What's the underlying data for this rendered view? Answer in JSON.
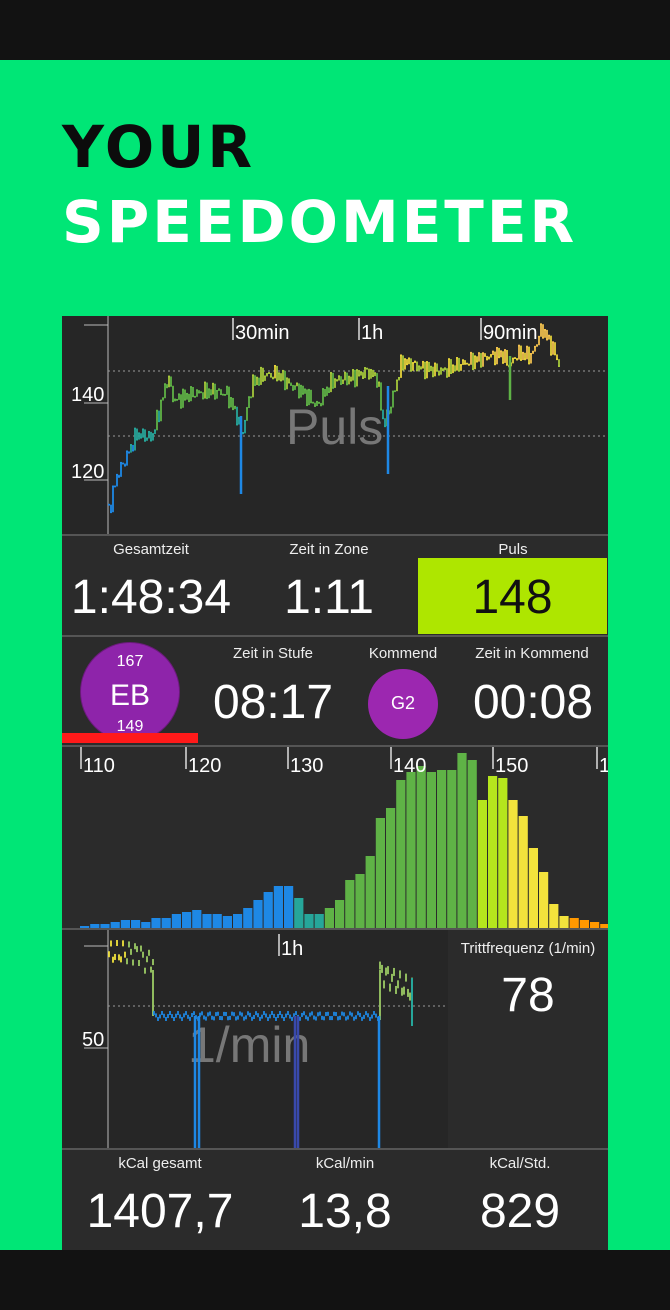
{
  "headline": {
    "line1": "YOUR",
    "line2": "SPEEDOMETER"
  },
  "pulse_chart": {
    "watermark": "Puls",
    "time_marks": [
      "30min",
      "1h",
      "90min"
    ],
    "y_ticks": [
      "140",
      "120"
    ]
  },
  "stats1": {
    "total_time_label": "Gesamtzeit",
    "total_time_value": "1:48:34",
    "zone_time_label": "Zeit in Zone",
    "zone_time_value": "1:11",
    "pulse_label": "Puls",
    "pulse_value": "148",
    "pulse_color": "#aee600"
  },
  "stage": {
    "badge_top": "167",
    "badge_label": "EB",
    "badge_bottom": "149",
    "stage_time_label": "Zeit in Stufe",
    "stage_time_value": "08:17",
    "next_label": "Kommend",
    "next_badge": "G2",
    "next_time_label": "Zeit in Kommend",
    "next_time_value": "00:08",
    "badge_color": "#8e24aa"
  },
  "histogram": {
    "x_ticks": [
      "110",
      "120",
      "130",
      "140",
      "150",
      "1"
    ]
  },
  "cadence": {
    "watermark": "1/min",
    "time_mark": "1h",
    "y_tick": "50",
    "label": "Trittfrequenz (1/min)",
    "value": "78"
  },
  "kcal": {
    "total_label": "kCal gesamt",
    "total_value": "1407,7",
    "per_min_label": "kCal/min",
    "per_min_value": "13,8",
    "per_hour_label": "kCal/Std.",
    "per_hour_value": "829"
  }
}
